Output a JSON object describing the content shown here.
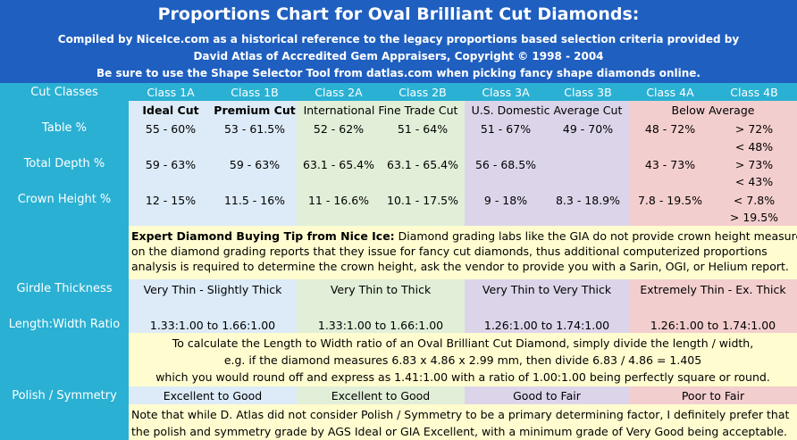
{
  "header": {
    "title": "Proportions Chart for Oval Brilliant Cut Diamonds:",
    "line1": "Compiled by NiceIce.com as a historical reference to the legacy proportions based selection criteria provided by",
    "line2": "David Atlas of Accredited Gem Appraisers, Copyright © 1998 - 2004",
    "line3": "Be sure to use the Shape Selector Tool from datlas.com when picking fancy shape diamonds online."
  },
  "colors": {
    "header_bg": "#1f5fc0",
    "band_bg": "#2ab0d3",
    "class1": "#dcebf7",
    "class2": "#e1efd8",
    "class3": "#dcd5ea",
    "class4": "#f3cece",
    "tip_bg": "#fffcd0"
  },
  "cut_classes": {
    "label": "Cut Classes",
    "items": [
      "Class 1A",
      "Class 1B",
      "Class 2A",
      "Class 2B",
      "Class 3A",
      "Class 3B",
      "Class 4A",
      "Class 4B"
    ]
  },
  "grades": {
    "ideal": "Ideal Cut",
    "premium": "Premium Cut",
    "international": "International Fine Trade Cut",
    "us_domestic": "U.S. Domestic Average Cut",
    "below": "Below Average"
  },
  "rows": {
    "table": {
      "label": "Table %",
      "c1a": "55 - 60%",
      "c1b": "53 - 61.5%",
      "c2a": "52 - 62%",
      "c2b": "51 - 64%",
      "c3a": "51 - 67%",
      "c3b": "49 - 70%",
      "c4a": "48 - 72%",
      "c4b_top": "> 72%",
      "c4b_bottom": "< 48%"
    },
    "depth": {
      "label": "Total Depth %",
      "c1a": "59 - 63%",
      "c1b": "59 - 63%",
      "c2a": "63.1 - 65.4%",
      "c2b": "63.1 - 65.4%",
      "c3a": "56 - 68.5%",
      "c4a": "43 - 73%",
      "c4b_top": "> 73%",
      "c4b_bottom": "< 43%"
    },
    "crown": {
      "label": "Crown Height %",
      "c1a": "12 - 15%",
      "c1b": "11.5 - 16%",
      "c2a": "11 - 16.6%",
      "c2b": "10.1 - 17.5%",
      "c3a": "9 - 18%",
      "c3b": "8.3 - 18.9%",
      "c4a": "7.8 - 19.5%",
      "c4b_top": "< 7.8%",
      "c4b_bottom": "> 19.5%"
    }
  },
  "tip": {
    "bold": "Expert Diamond Buying Tip from Nice Ice:",
    "line1": " Diamond grading labs like the GIA do not provide crown height measurements",
    "line2": "on the diamond grading reports that they issue for fancy cut diamonds, thus additional computerized proportions",
    "line3": "analysis is required to determine the crown height, ask the vendor to provide you with a Sarin, OGI, or Helium report."
  },
  "girdle": {
    "label": "Girdle Thickness",
    "c1": "Very Thin - Slightly Thick",
    "c2": "Very Thin to Thick",
    "c3": "Very Thin to Very Thick",
    "c4": "Extremely Thin - Ex. Thick"
  },
  "ratio": {
    "label": "Length:Width Ratio",
    "c1": "1.33:1.00 to 1.66:1.00",
    "c2": "1.33:1.00 to 1.66:1.00",
    "c3": "1.26:1.00 to 1.74:1.00",
    "c4": "1.26:1.00 to 1.74:1.00"
  },
  "ratio_note": {
    "line1": "To calculate the Length to Width ratio of an Oval Brilliant Cut Diamond, simply divide the length / width,",
    "line2": "e.g. if the diamond measures 6.83 x 4.86 x 2.99 mm, then divide 6.83 / 4.86 = 1.405",
    "line3": "which you would round off and express as 1.41:1.00 with a ratio of 1.00:1.00 being perfectly square or round."
  },
  "polish": {
    "label": "Polish / Symmetry",
    "c1": "Excellent to Good",
    "c2": "Excellent to Good",
    "c3": "Good to Fair",
    "c4": "Poor to Fair"
  },
  "polish_note": {
    "line1": "Note that while D. Atlas did not consider Polish / Symmetry to be a primary determining factor, I definitely prefer that",
    "line2": "the polish and symmetry grade by AGS Ideal or GIA Excellent, with a minimum grade of Very Good being acceptable."
  }
}
